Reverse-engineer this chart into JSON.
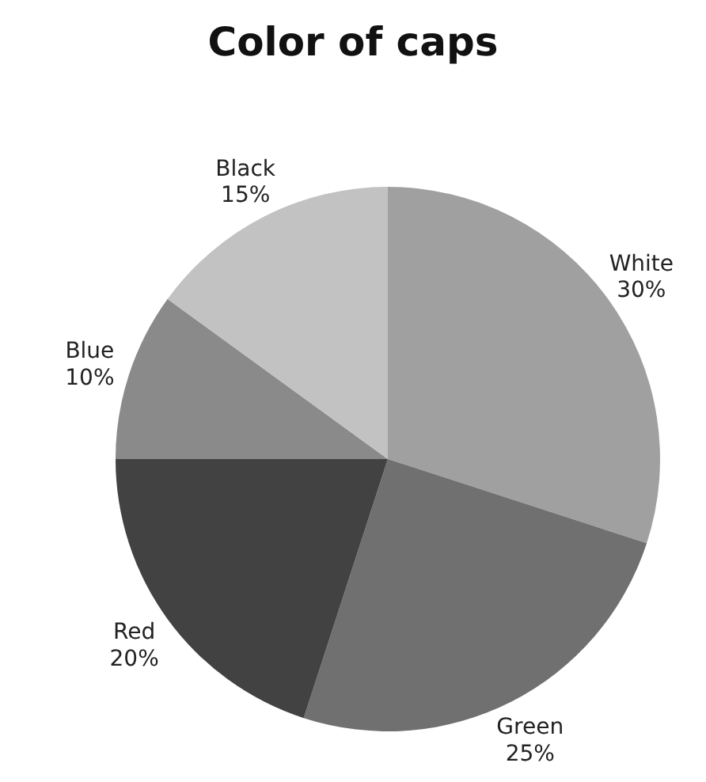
{
  "chart_data": {
    "type": "pie",
    "title": "Color of caps",
    "categories": [
      "White",
      "Green",
      "Red",
      "Blue",
      "Black"
    ],
    "values": [
      30,
      25,
      20,
      10,
      15
    ],
    "value_labels": [
      "30%",
      "25%",
      "20%",
      "10%",
      "15%"
    ],
    "colors": [
      "#a0a0a0",
      "#707070",
      "#424242",
      "#8a8a8a",
      "#c2c2c2"
    ],
    "legend": false
  }
}
